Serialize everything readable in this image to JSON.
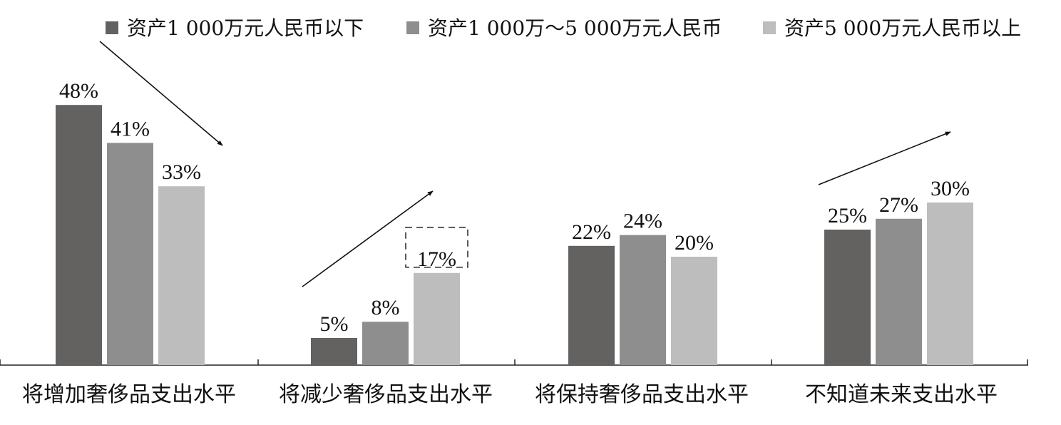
{
  "chart_data": {
    "type": "bar",
    "title": "",
    "xlabel": "",
    "ylabel": "",
    "ylim": [
      0,
      50
    ],
    "grid": false,
    "legend_position": "top",
    "categories": [
      "将增加奢侈品支出水平",
      "将减少奢侈品支出水平",
      "将保持奢侈品支出水平",
      "不知道未来支出水平"
    ],
    "series": [
      {
        "name": "资产1 000万元人民币以下",
        "color": "#636260",
        "values": [
          48,
          5,
          22,
          25
        ],
        "labels": [
          "48%",
          "5%",
          "22%",
          "25%"
        ]
      },
      {
        "name": "资产1 000万～5 000万元人民币",
        "color": "#8f8e8e",
        "values": [
          41,
          8,
          24,
          27
        ],
        "labels": [
          "41%",
          "8%",
          "24%",
          "27%"
        ]
      },
      {
        "name": "资产5 000万元人民币以上",
        "color": "#bebdbd",
        "values": [
          33,
          17,
          20,
          30
        ],
        "labels": [
          "33%",
          "17%",
          "20%",
          "30%"
        ]
      }
    ],
    "highlight": {
      "category_index": 1,
      "series_index": 2,
      "style": "dashed-box"
    },
    "annotations": [
      {
        "type": "trend-arrow",
        "category_index": 0,
        "direction": "down"
      },
      {
        "type": "trend-arrow",
        "category_index": 1,
        "direction": "up"
      },
      {
        "type": "trend-arrow",
        "category_index": 3,
        "direction": "up"
      }
    ]
  }
}
